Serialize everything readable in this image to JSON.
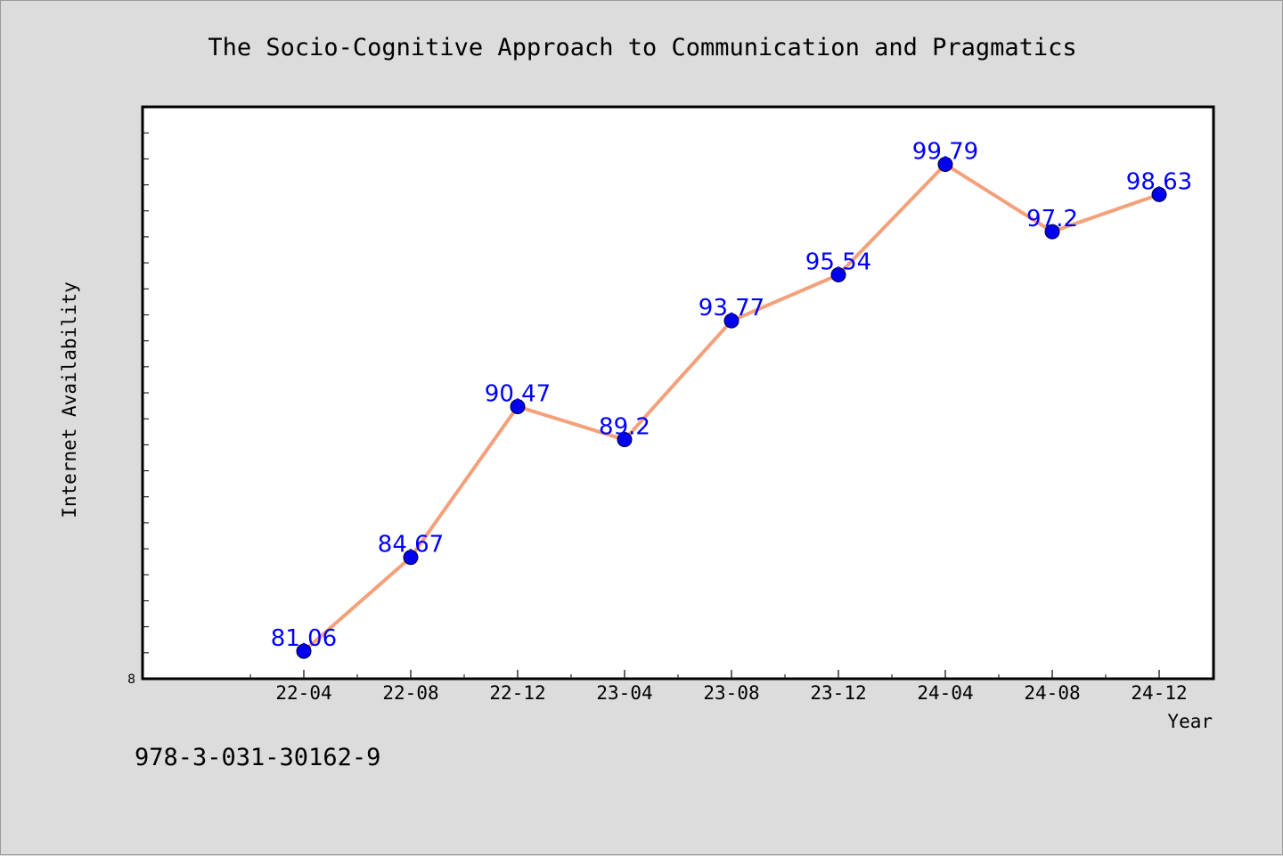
{
  "chart_data": {
    "type": "line",
    "title": "The Socio-Cognitive Approach to Communication and Pragmatics",
    "xlabel": "Year",
    "ylabel": "Internet Availability",
    "categories": [
      "22-04",
      "22-08",
      "22-12",
      "23-04",
      "23-08",
      "23-12",
      "24-04",
      "24-08",
      "24-12"
    ],
    "series": [
      {
        "values": [
          81.06,
          84.67,
          90.47,
          89.2,
          93.77,
          95.54,
          99.79,
          97.2,
          98.63
        ],
        "line_color": "#f4a07a",
        "marker_color": "#0000ee"
      }
    ],
    "data_labels": [
      "81.06",
      "84.67",
      "90.47",
      "89.2",
      "93.77",
      "95.54",
      "99.79",
      "97.2",
      "98.63"
    ],
    "data_label_color": "#0000ff",
    "ylim": [
      80.0,
      102.0
    ],
    "ytick_labels": [
      {
        "value": 80.0,
        "label": "8"
      }
    ],
    "ygrid": false,
    "xgrid": false,
    "legend": "none"
  },
  "footer": {
    "code": "978-3-031-30162-9"
  },
  "colors": {
    "background": "#dcdcdc",
    "plot_background": "#ffffff",
    "frame": "#000000"
  }
}
